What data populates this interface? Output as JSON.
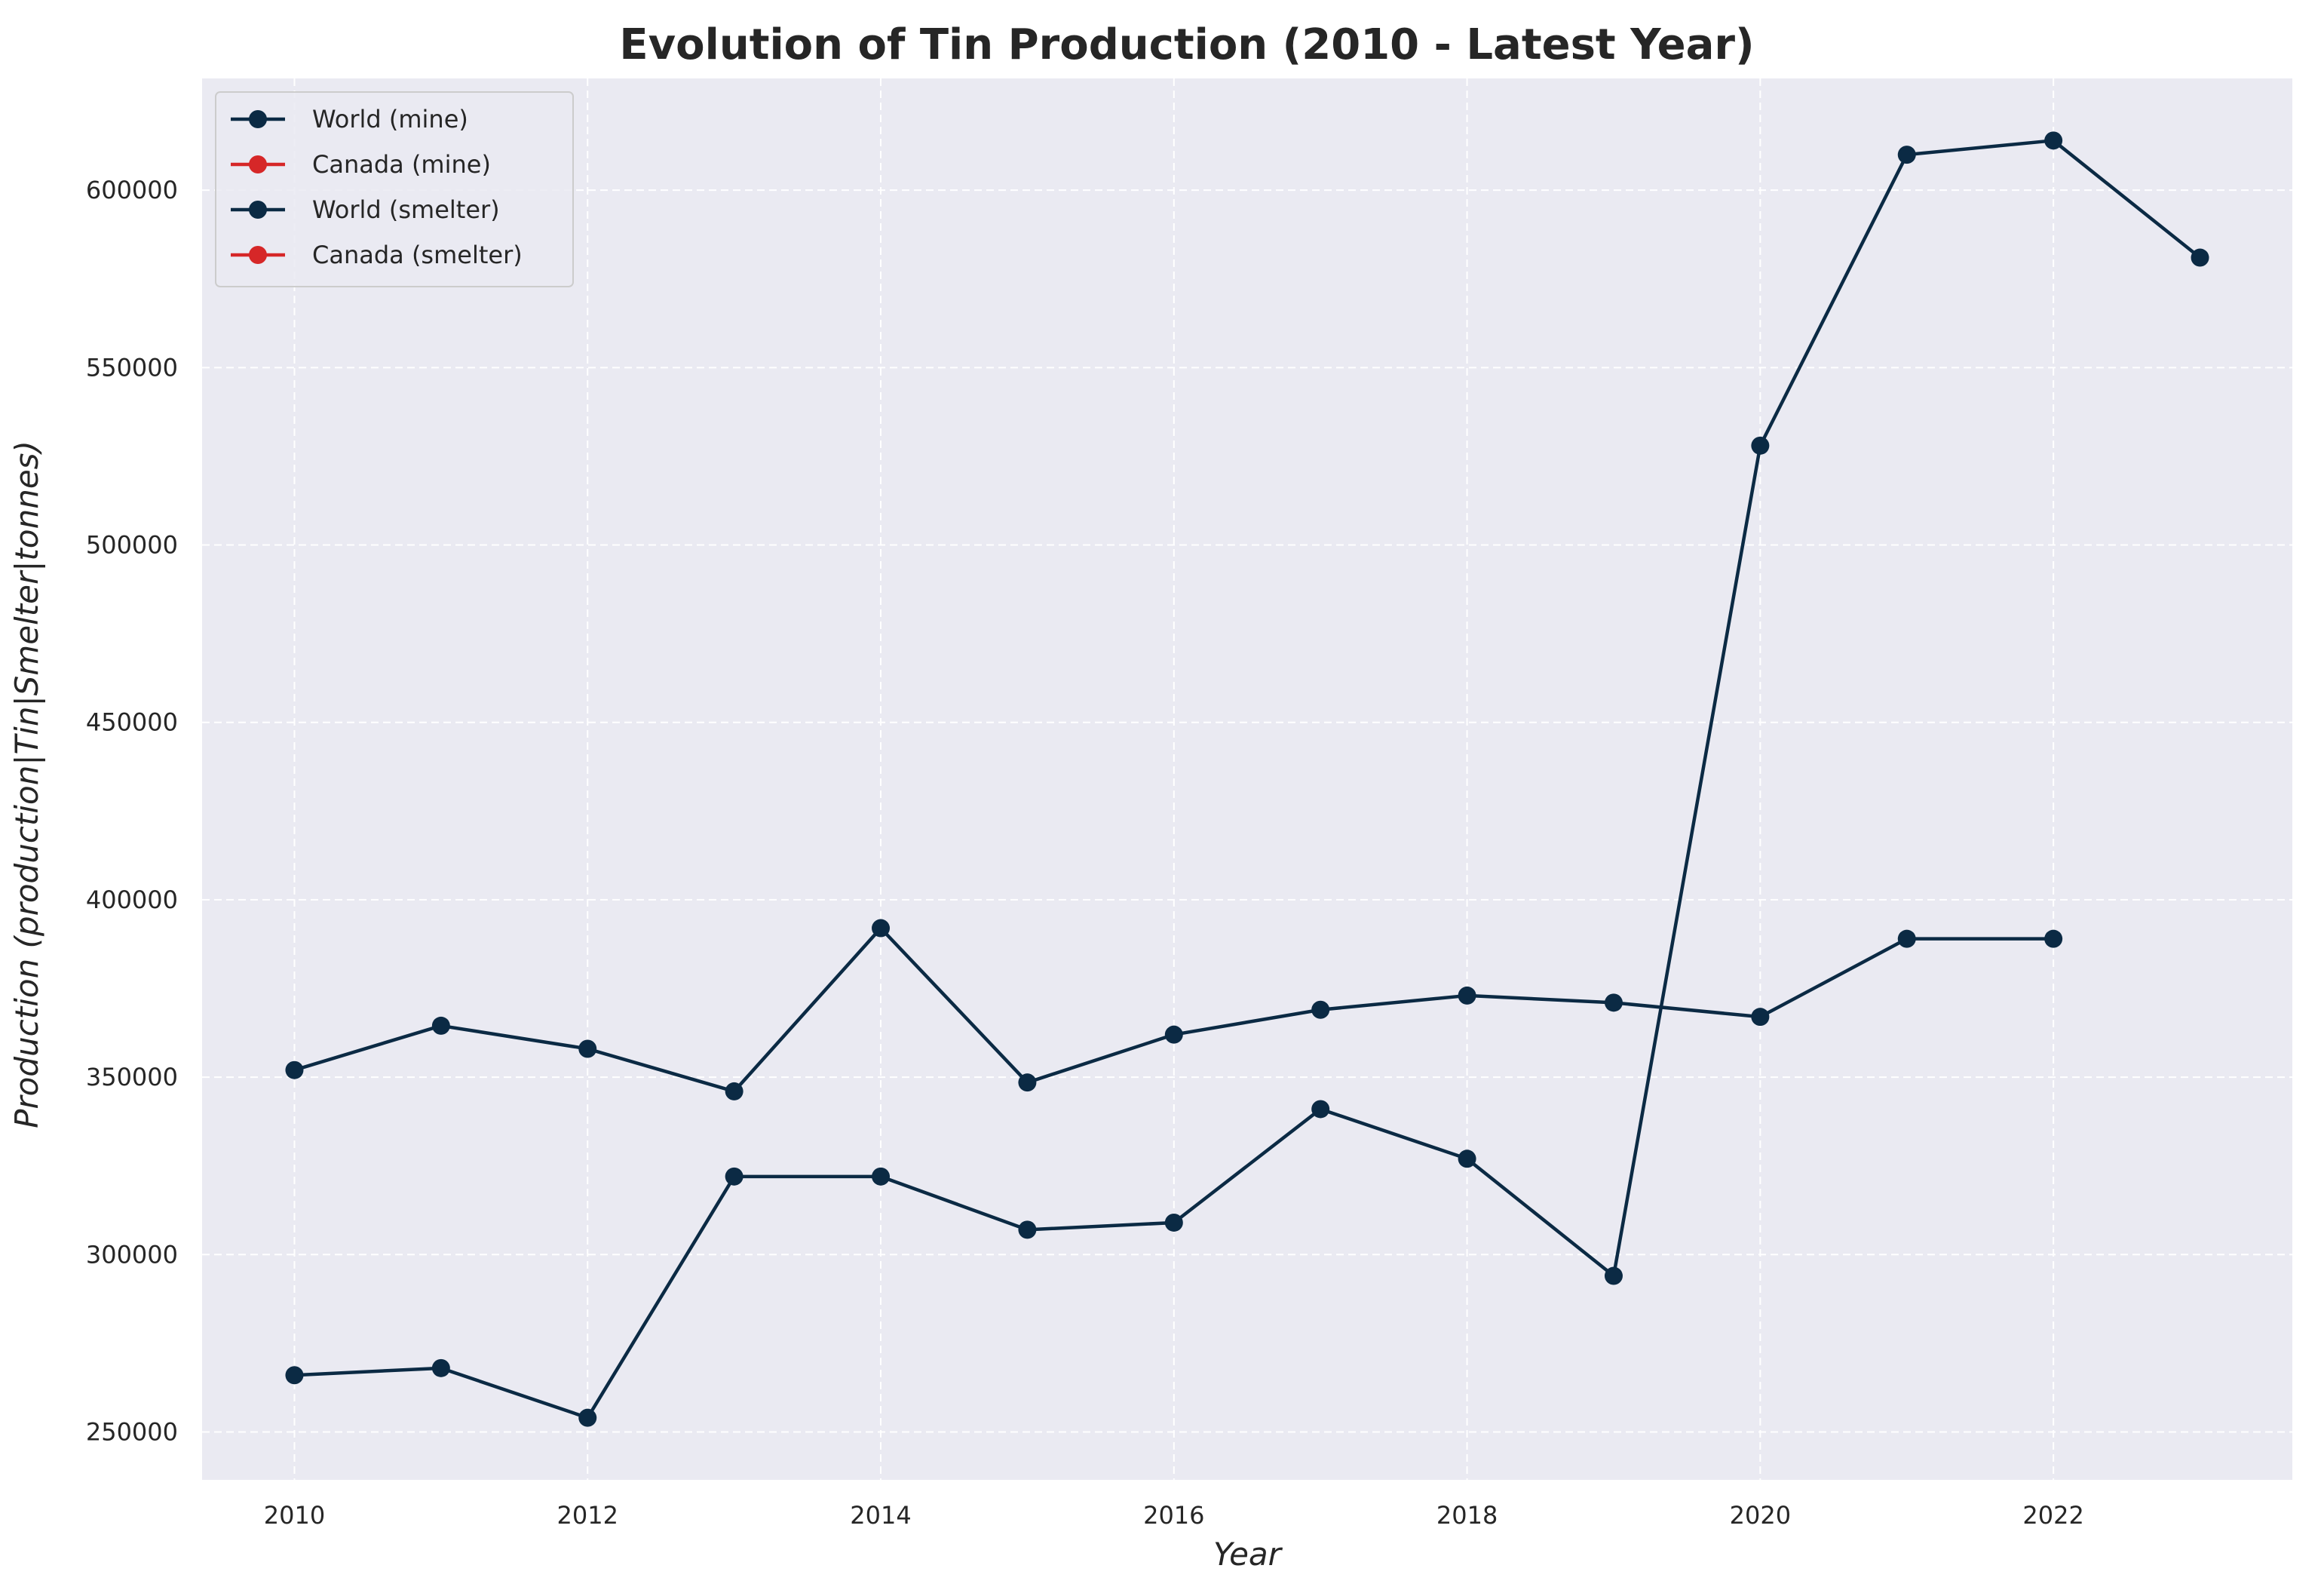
{
  "chart_data": {
    "type": "line",
    "title": "Evolution of Tin Production (2010 - Latest Year)",
    "xlabel": "Year",
    "ylabel": "Production (production|Tin|Smelter|tonnes)",
    "xlim": [
      2009.37,
      2023.63
    ],
    "ylim": [
      236500,
      631500
    ],
    "xticks": [
      2010,
      2012,
      2014,
      2016,
      2018,
      2020,
      2022
    ],
    "yticks": [
      250000,
      300000,
      350000,
      400000,
      450000,
      500000,
      550000,
      600000
    ],
    "grid": true,
    "legend_position": "upper-left",
    "colors": {
      "background": "#eaeaf2",
      "grid": "#ffffff",
      "text": "#262626"
    },
    "series": [
      {
        "name": "World (mine)",
        "color": "#0b2a44",
        "x": [
          2010,
          2011,
          2012,
          2013,
          2014,
          2015,
          2016,
          2017,
          2018,
          2019,
          2020,
          2021,
          2022,
          2023
        ],
        "y": [
          266000,
          268000,
          254000,
          322000,
          322000,
          307000,
          309000,
          341000,
          327000,
          294000,
          528000,
          610000,
          614000,
          581000
        ]
      },
      {
        "name": "Canada (mine)",
        "color": "#d62728",
        "x": [],
        "y": []
      },
      {
        "name": "World (smelter)",
        "color": "#0b2a44",
        "x": [
          2010,
          2011,
          2012,
          2013,
          2014,
          2015,
          2016,
          2017,
          2018,
          2019,
          2020,
          2021,
          2022
        ],
        "y": [
          352000,
          364500,
          358000,
          346000,
          392000,
          348500,
          362000,
          369000,
          373000,
          371000,
          367000,
          389000,
          389000
        ]
      },
      {
        "name": "Canada (smelter)",
        "color": "#d62728",
        "x": [],
        "y": []
      }
    ]
  }
}
